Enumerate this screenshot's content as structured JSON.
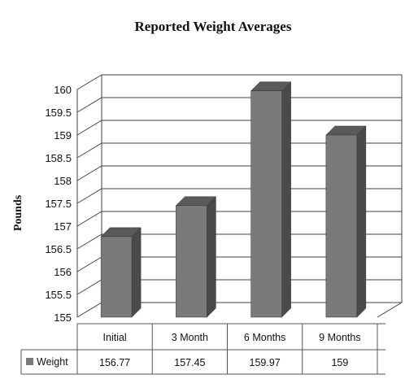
{
  "chart_data": {
    "type": "bar",
    "title": "Reported Weight Averages",
    "ylabel": "Pounds",
    "xlabel": "",
    "categories": [
      "Initial",
      "3 Month",
      "6 Months",
      "9 Months"
    ],
    "series": [
      {
        "name": "Weight",
        "values": [
          156.77,
          157.45,
          159.97,
          159
        ],
        "value_labels": [
          "156.77",
          "157.45",
          "159.97",
          "159"
        ]
      }
    ],
    "ylim": [
      155,
      160
    ],
    "yticks": [
      "155",
      "155.5",
      "156",
      "156.5",
      "157",
      "157.5",
      "158",
      "158.5",
      "159",
      "159.5",
      "160"
    ],
    "grid": true,
    "legend": "data-table",
    "colors": {
      "bar_front": "#7a7a7a",
      "bar_side": "#4a4a4a",
      "bar_top": "#5a5a5a",
      "grid": "#444444"
    }
  }
}
